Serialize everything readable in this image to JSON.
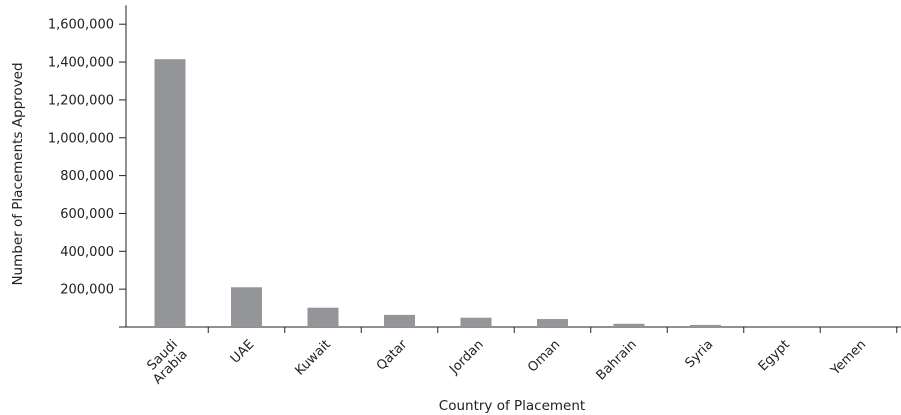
{
  "chart_data": {
    "type": "bar",
    "title": "",
    "xlabel": "Country of Placement",
    "ylabel": "Number of Placements Approved",
    "categories": [
      [
        "Saudi",
        "Arabia"
      ],
      [
        "UAE"
      ],
      [
        "Kuwait"
      ],
      [
        "Qatar"
      ],
      [
        "Jordan"
      ],
      [
        "Oman"
      ],
      [
        "Bahrain"
      ],
      [
        "Syria"
      ],
      [
        "Egypt"
      ],
      [
        "Yemen"
      ]
    ],
    "values": [
      1415000,
      210000,
      102000,
      64000,
      49000,
      42000,
      17000,
      11000,
      2000,
      1000
    ],
    "ylim": [
      0,
      1700000
    ],
    "yticks": [
      200000,
      400000,
      600000,
      800000,
      1000000,
      1200000,
      1400000,
      1600000
    ],
    "ytick_labels": [
      "200,000",
      "400,000",
      "600,000",
      "800,000",
      "1,000,000",
      "1,200,000",
      "1,400,000",
      "1,600,000"
    ],
    "bar_color": "#939598",
    "grid": false,
    "legend": "none"
  }
}
